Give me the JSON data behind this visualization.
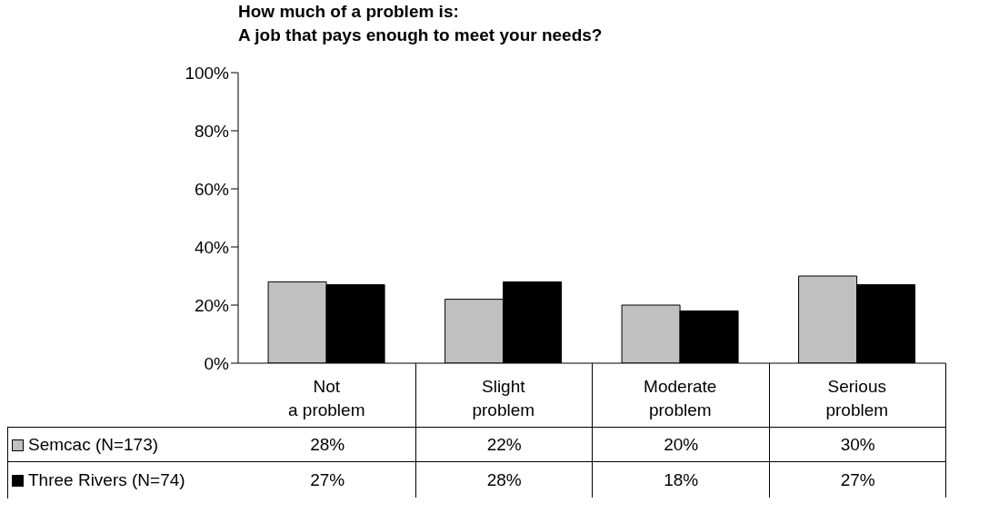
{
  "chart_data": {
    "type": "bar",
    "title": "How much of a problem is:\nA job that pays enough to meet your needs?",
    "categories": [
      "Not\na problem",
      "Slight\nproblem",
      "Moderate\nproblem",
      "Serious\nproblem"
    ],
    "series": [
      {
        "name": "Semcac (N=173)",
        "color": "#c0c0c0",
        "values": [
          28,
          22,
          20,
          30
        ],
        "value_labels": [
          "28%",
          "22%",
          "20%",
          "30%"
        ]
      },
      {
        "name": "Three Rivers (N=74)",
        "color": "#000000",
        "values": [
          27,
          28,
          18,
          27
        ],
        "value_labels": [
          "27%",
          "28%",
          "18%",
          "27%"
        ]
      }
    ],
    "ylim": [
      0,
      100
    ],
    "yticks": [
      {
        "value": 0,
        "label": "0%"
      },
      {
        "value": 20,
        "label": "20%"
      },
      {
        "value": 40,
        "label": "40%"
      },
      {
        "value": 60,
        "label": "60%"
      },
      {
        "value": 80,
        "label": "80%"
      },
      {
        "value": 100,
        "label": "100%"
      }
    ],
    "grid": false,
    "legend": "bottom"
  }
}
